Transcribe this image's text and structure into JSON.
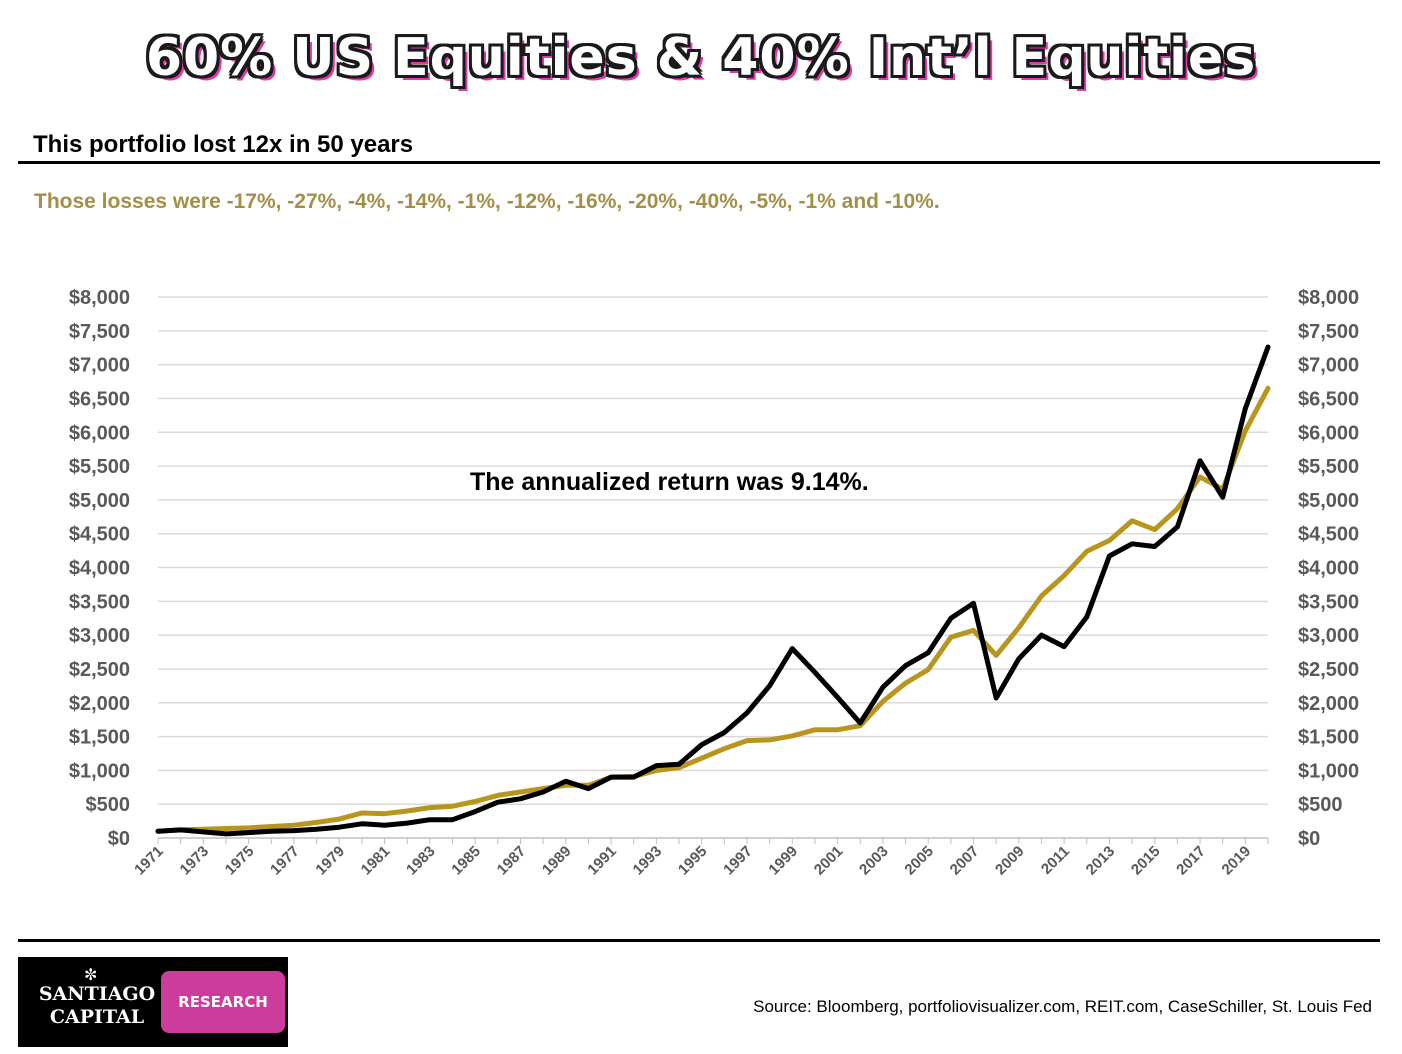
{
  "title": "60% US Equities & 40% Int’l Equities",
  "subtitle": "This portfolio lost 12x in 50 years",
  "losses_note": "Those losses were -17%, -27%, -4%, -14%, -1%, -12%, -16%, -20%, -40%, -5%, -1% and -10%.",
  "annotation": "The annualized return was 9.14%.",
  "source": "Source:  Bloomberg, portfoliovisualizer.com, REIT.com, CaseSchiller, St. Louis Fed",
  "logo": {
    "line1": "SANTIAGO",
    "line2": "CAPITAL",
    "badge": "RESEARCH"
  },
  "colors": {
    "gold": "#b8961e",
    "black": "#000000",
    "pink": "#cc3c9c",
    "subtitle_gold": "#a38f48"
  },
  "chart_data": {
    "type": "line",
    "x": [
      1971,
      1972,
      1973,
      1974,
      1975,
      1976,
      1977,
      1978,
      1979,
      1980,
      1981,
      1982,
      1983,
      1984,
      1985,
      1986,
      1987,
      1988,
      1989,
      1990,
      1991,
      1992,
      1993,
      1994,
      1995,
      1996,
      1997,
      1998,
      1999,
      2000,
      2001,
      2002,
      2003,
      2004,
      2005,
      2006,
      2007,
      2008,
      2009,
      2010,
      2011,
      2012,
      2013,
      2014,
      2015,
      2016,
      2017,
      2018,
      2019,
      2020
    ],
    "series": [
      {
        "name": "black",
        "color": "#000000",
        "values": [
          100,
          120,
          90,
          60,
          80,
          100,
          110,
          130,
          160,
          210,
          190,
          220,
          270,
          270,
          390,
          530,
          580,
          680,
          840,
          730,
          900,
          900,
          1070,
          1090,
          1380,
          1560,
          1850,
          2250,
          2800,
          2450,
          2080,
          1700,
          2230,
          2550,
          2740,
          3250,
          3470,
          2070,
          2650,
          3000,
          2830,
          3270,
          4170,
          4350,
          4310,
          4600,
          5580,
          5040,
          6350,
          7260
        ]
      },
      {
        "name": "gold",
        "color": "#b8961e",
        "values": [
          100,
          120,
          130,
          140,
          150,
          170,
          190,
          230,
          280,
          370,
          360,
          400,
          450,
          470,
          540,
          630,
          680,
          730,
          780,
          780,
          900,
          910,
          1000,
          1040,
          1180,
          1320,
          1440,
          1450,
          1510,
          1600,
          1600,
          1660,
          2020,
          2290,
          2490,
          2970,
          3070,
          2700,
          3110,
          3580,
          3880,
          4240,
          4400,
          4690,
          4560,
          4870,
          5340,
          5160,
          6020,
          6650
        ]
      }
    ],
    "y_tick_labels": [
      "$0",
      "$500",
      "$1,000",
      "$1,500",
      "$2,000",
      "$2,500",
      "$3,000",
      "$3,500",
      "$4,000",
      "$4,500",
      "$5,000",
      "$5,500",
      "$6,000",
      "$6,500",
      "$7,000",
      "$7,500",
      "$8,000"
    ],
    "x_tick_labels": [
      "1971",
      "1973",
      "1975",
      "1977",
      "1979",
      "1981",
      "1983",
      "1985",
      "1987",
      "1989",
      "1991",
      "1993",
      "1995",
      "1997",
      "1999",
      "2001",
      "2003",
      "2005",
      "2007",
      "2009",
      "2011",
      "2013",
      "2015",
      "2017",
      "2019"
    ],
    "ylim": [
      0,
      8000
    ],
    "grid": true,
    "xlabel": "",
    "ylabel": ""
  }
}
